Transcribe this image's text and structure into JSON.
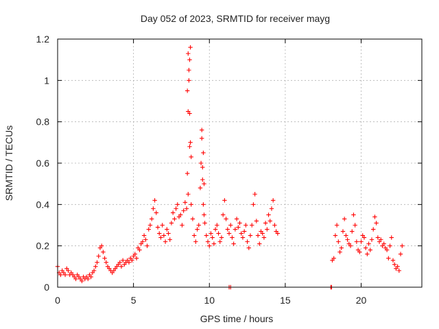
{
  "chart_data": {
    "type": "scatter",
    "title": "Day 052 of 2023, SRMTID for receiver mayg",
    "xlabel": "GPS time / hours",
    "ylabel": "SRMTID / TECUs",
    "xlim": [
      0,
      24
    ],
    "ylim": [
      0,
      1.2
    ],
    "xticks": [
      0,
      5,
      10,
      15,
      20
    ],
    "xtick_labels": [
      "0",
      "5",
      "10",
      "15",
      "20"
    ],
    "yticks": [
      0,
      0.2,
      0.4,
      0.6,
      0.8,
      1.0,
      1.2
    ],
    "ytick_labels": [
      "0",
      "0.2",
      "0.4",
      "0.6",
      "0.8",
      "1",
      "1.2"
    ],
    "grid": true,
    "legend": "none",
    "marker": "plus",
    "series": [
      {
        "name": "SRMTID",
        "color": "#ff0000",
        "x": [
          0.0,
          0.1,
          0.2,
          0.3,
          0.4,
          0.5,
          0.6,
          0.7,
          0.8,
          0.9,
          1.0,
          1.1,
          1.2,
          1.3,
          1.4,
          1.5,
          1.6,
          1.7,
          1.8,
          1.9,
          2.0,
          2.1,
          2.2,
          2.3,
          2.4,
          2.5,
          2.6,
          2.7,
          2.8,
          2.9,
          3.0,
          3.1,
          3.2,
          3.3,
          3.4,
          3.5,
          3.6,
          3.7,
          3.8,
          3.9,
          4.0,
          4.1,
          4.2,
          4.3,
          4.4,
          4.5,
          4.6,
          4.7,
          4.8,
          4.9,
          5.0,
          5.1,
          5.2,
          5.3,
          5.4,
          5.5,
          5.6,
          5.7,
          5.8,
          5.9,
          6.0,
          6.1,
          6.2,
          6.3,
          6.4,
          6.5,
          6.6,
          6.7,
          6.8,
          6.9,
          7.0,
          7.1,
          7.2,
          7.3,
          7.4,
          7.5,
          7.6,
          7.7,
          7.8,
          7.9,
          8.0,
          8.1,
          8.2,
          8.3,
          8.4,
          8.5,
          8.55,
          8.6,
          8.65,
          8.7,
          8.75,
          8.8,
          8.9,
          9.0,
          9.1,
          9.2,
          9.3,
          9.4,
          9.45,
          9.5,
          9.55,
          9.6,
          9.65,
          9.7,
          9.8,
          9.9,
          10.0,
          10.1,
          10.2,
          10.3,
          10.4,
          10.5,
          10.6,
          10.7,
          10.8,
          10.9,
          11.0,
          11.1,
          11.2,
          11.3,
          11.4,
          11.5,
          11.6,
          11.7,
          11.8,
          11.9,
          12.0,
          12.1,
          12.2,
          12.3,
          12.4,
          12.5,
          12.6,
          12.7,
          12.8,
          12.9,
          13.0,
          13.1,
          13.2,
          13.3,
          13.4,
          13.5,
          13.6,
          13.7,
          13.8,
          13.9,
          14.0,
          14.1,
          14.2,
          14.3,
          14.4,
          14.5,
          18.1,
          18.2,
          18.3,
          18.4,
          18.5,
          18.6,
          18.7,
          18.8,
          18.9,
          19.0,
          19.1,
          19.2,
          19.3,
          19.4,
          19.5,
          19.6,
          19.7,
          19.8,
          19.9,
          20.0,
          20.1,
          20.2,
          20.3,
          20.4,
          20.5,
          20.6,
          20.7,
          20.8,
          20.9,
          21.0,
          21.1,
          21.2,
          21.3,
          21.4,
          21.5,
          21.6,
          21.7,
          21.8,
          21.9,
          22.0,
          22.1,
          22.2,
          22.3,
          22.4,
          22.5,
          22.6,
          22.7,
          11.3,
          11.4,
          18.0,
          18.05,
          8.55,
          8.6,
          8.65,
          8.7,
          8.75,
          8.8,
          8.6,
          8.7,
          9.5,
          9.6,
          9.55,
          9.65
        ],
        "y": [
          0.1,
          0.07,
          0.06,
          0.08,
          0.07,
          0.06,
          0.09,
          0.08,
          0.06,
          0.07,
          0.06,
          0.05,
          0.04,
          0.06,
          0.05,
          0.04,
          0.03,
          0.05,
          0.04,
          0.05,
          0.04,
          0.06,
          0.05,
          0.07,
          0.08,
          0.1,
          0.12,
          0.15,
          0.19,
          0.2,
          0.17,
          0.14,
          0.12,
          0.1,
          0.09,
          0.08,
          0.07,
          0.08,
          0.09,
          0.1,
          0.11,
          0.12,
          0.1,
          0.13,
          0.11,
          0.12,
          0.13,
          0.12,
          0.14,
          0.13,
          0.15,
          0.16,
          0.14,
          0.19,
          0.18,
          0.21,
          0.22,
          0.25,
          0.23,
          0.2,
          0.28,
          0.3,
          0.33,
          0.38,
          0.42,
          0.36,
          0.29,
          0.26,
          0.24,
          0.3,
          0.25,
          0.22,
          0.28,
          0.26,
          0.23,
          0.31,
          0.36,
          0.33,
          0.38,
          0.4,
          0.34,
          0.35,
          0.3,
          0.37,
          0.41,
          0.38,
          0.55,
          0.85,
          1.0,
          1.1,
          1.16,
          0.63,
          0.33,
          0.25,
          0.22,
          0.28,
          0.3,
          0.48,
          0.6,
          0.72,
          0.52,
          0.4,
          0.35,
          0.31,
          0.25,
          0.22,
          0.2,
          0.26,
          0.24,
          0.21,
          0.28,
          0.3,
          0.26,
          0.22,
          0.24,
          0.35,
          0.42,
          0.33,
          0.28,
          0.26,
          0.3,
          0.24,
          0.21,
          0.28,
          0.33,
          0.29,
          0.31,
          0.26,
          0.24,
          0.27,
          0.3,
          0.22,
          0.19,
          0.25,
          0.3,
          0.4,
          0.45,
          0.32,
          0.25,
          0.21,
          0.27,
          0.26,
          0.24,
          0.31,
          0.28,
          0.35,
          0.32,
          0.38,
          0.42,
          0.3,
          0.27,
          0.26,
          0.13,
          0.14,
          0.25,
          0.3,
          0.22,
          0.17,
          0.19,
          0.27,
          0.33,
          0.25,
          0.23,
          0.21,
          0.2,
          0.27,
          0.35,
          0.3,
          0.22,
          0.18,
          0.17,
          0.22,
          0.25,
          0.24,
          0.19,
          0.16,
          0.21,
          0.18,
          0.23,
          0.28,
          0.34,
          0.31,
          0.24,
          0.22,
          0.23,
          0.2,
          0.21,
          0.19,
          0.18,
          0.14,
          0.2,
          0.24,
          0.13,
          0.11,
          0.09,
          0.1,
          0.08,
          0.16,
          0.2,
          0.0,
          0.0,
          0.0,
          0.0,
          0.95,
          1.13,
          1.05,
          0.84,
          0.7,
          0.4,
          0.45,
          0.68,
          0.76,
          0.65,
          0.58,
          0.5
        ]
      }
    ]
  }
}
